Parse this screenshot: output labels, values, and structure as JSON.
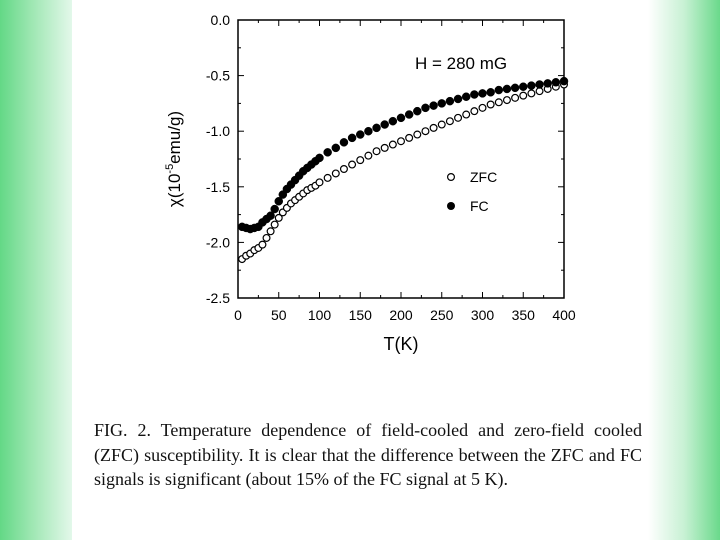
{
  "caption": "FIG. 2. Temperature dependence of field-cooled and zero-field cooled (ZFC) susceptibility. It is clear that the difference between the ZFC and FC signals is significant (about 15% of the FC signal at 5 K).",
  "colors": {
    "left_bar": "#63d886",
    "right_bar": "#6ad98b",
    "markers": "#000000"
  },
  "chart_data": {
    "type": "scatter",
    "annotation": "H = 280 mG",
    "xlabel": "T(K)",
    "ylabel_prefix": "χ(10",
    "ylabel_exp": "-5",
    "ylabel_suffix": "emu/g)",
    "xlim": [
      0,
      400
    ],
    "ylim": [
      -2.5,
      0.0
    ],
    "xticks": [
      0,
      50,
      100,
      150,
      200,
      250,
      300,
      350,
      400
    ],
    "yticks": [
      "0.0",
      "-0.5",
      "-1.0",
      "-1.5",
      "-2.0",
      "-2.5"
    ],
    "grid": false,
    "legend": {
      "placement": "right-middle",
      "entries": [
        {
          "label": "ZFC",
          "marker": "open-circle"
        },
        {
          "label": "FC",
          "marker": "filled-circle"
        }
      ]
    },
    "series": [
      {
        "name": "ZFC",
        "marker": "open-circle",
        "x": [
          5,
          10,
          15,
          20,
          25,
          30,
          35,
          40,
          45,
          50,
          55,
          60,
          65,
          70,
          75,
          80,
          85,
          90,
          95,
          100,
          110,
          120,
          130,
          140,
          150,
          160,
          170,
          180,
          190,
          200,
          210,
          220,
          230,
          240,
          250,
          260,
          270,
          280,
          290,
          300,
          310,
          320,
          330,
          340,
          350,
          360,
          370,
          380,
          390,
          400
        ],
        "y": [
          -2.15,
          -2.12,
          -2.1,
          -2.07,
          -2.05,
          -2.02,
          -1.96,
          -1.9,
          -1.84,
          -1.78,
          -1.73,
          -1.69,
          -1.65,
          -1.62,
          -1.59,
          -1.56,
          -1.53,
          -1.51,
          -1.49,
          -1.46,
          -1.42,
          -1.38,
          -1.34,
          -1.3,
          -1.26,
          -1.22,
          -1.18,
          -1.15,
          -1.12,
          -1.09,
          -1.06,
          -1.03,
          -1.0,
          -0.97,
          -0.94,
          -0.91,
          -0.88,
          -0.85,
          -0.82,
          -0.79,
          -0.76,
          -0.74,
          -0.72,
          -0.7,
          -0.68,
          -0.66,
          -0.64,
          -0.62,
          -0.6,
          -0.58
        ]
      },
      {
        "name": "FC",
        "marker": "filled-circle",
        "x": [
          5,
          10,
          15,
          20,
          25,
          30,
          35,
          40,
          45,
          50,
          55,
          60,
          65,
          70,
          75,
          80,
          85,
          90,
          95,
          100,
          110,
          120,
          130,
          140,
          150,
          160,
          170,
          180,
          190,
          200,
          210,
          220,
          230,
          240,
          250,
          260,
          270,
          280,
          290,
          300,
          310,
          320,
          330,
          340,
          350,
          360,
          370,
          380,
          390,
          400
        ],
        "y": [
          -1.86,
          -1.87,
          -1.88,
          -1.87,
          -1.86,
          -1.82,
          -1.79,
          -1.76,
          -1.7,
          -1.63,
          -1.57,
          -1.52,
          -1.48,
          -1.44,
          -1.4,
          -1.36,
          -1.33,
          -1.3,
          -1.27,
          -1.24,
          -1.19,
          -1.15,
          -1.1,
          -1.06,
          -1.03,
          -1.0,
          -0.97,
          -0.94,
          -0.91,
          -0.88,
          -0.85,
          -0.82,
          -0.79,
          -0.77,
          -0.75,
          -0.73,
          -0.71,
          -0.69,
          -0.67,
          -0.66,
          -0.65,
          -0.63,
          -0.62,
          -0.61,
          -0.6,
          -0.59,
          -0.58,
          -0.57,
          -0.56,
          -0.55
        ]
      }
    ]
  }
}
